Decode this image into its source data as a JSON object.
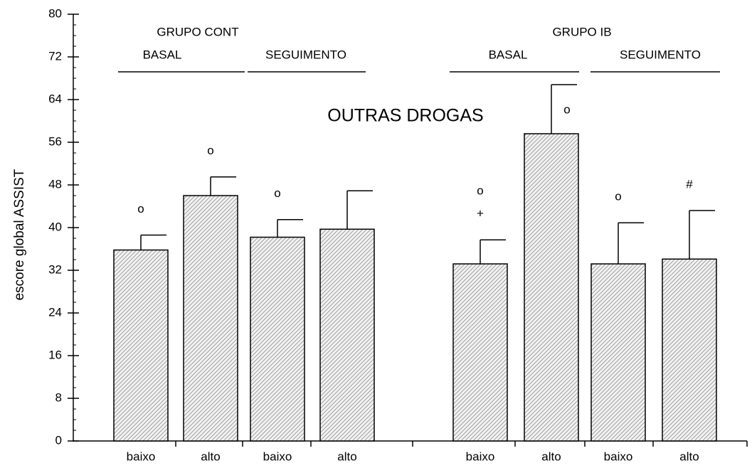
{
  "chart_data": {
    "type": "bar",
    "title": "OUTRAS DROGAS",
    "ylabel": "escore global ASSIST",
    "categories": [
      "baixo",
      "alto",
      "baixo",
      "alto",
      "baixo",
      "alto",
      "baixo",
      "alto"
    ],
    "values": [
      35.8,
      46,
      38.2,
      39.7,
      33.2,
      57.6,
      33.2,
      34.1
    ],
    "errors": [
      2.8,
      3.5,
      3.3,
      7.2,
      4.5,
      9.2,
      7.7,
      9.1
    ],
    "bar_markers": [
      [
        "o"
      ],
      [
        "o"
      ],
      [
        "o"
      ],
      [],
      [
        "o",
        "+"
      ],
      [
        "o"
      ],
      [
        "o"
      ],
      [
        "#"
      ]
    ],
    "groups": [
      {
        "name": "GRUPO CONT",
        "subgroups": [
          "BASAL",
          "SEGUIMENTO"
        ]
      },
      {
        "name": "GRUPO IB",
        "subgroups": [
          "BASAL",
          "SEGUIMENTO"
        ]
      }
    ],
    "color": "#8a8a8a",
    "ylim": [
      0,
      80
    ],
    "yticks": [
      0,
      8,
      16,
      24,
      32,
      40,
      48,
      56,
      64,
      72,
      80
    ]
  }
}
